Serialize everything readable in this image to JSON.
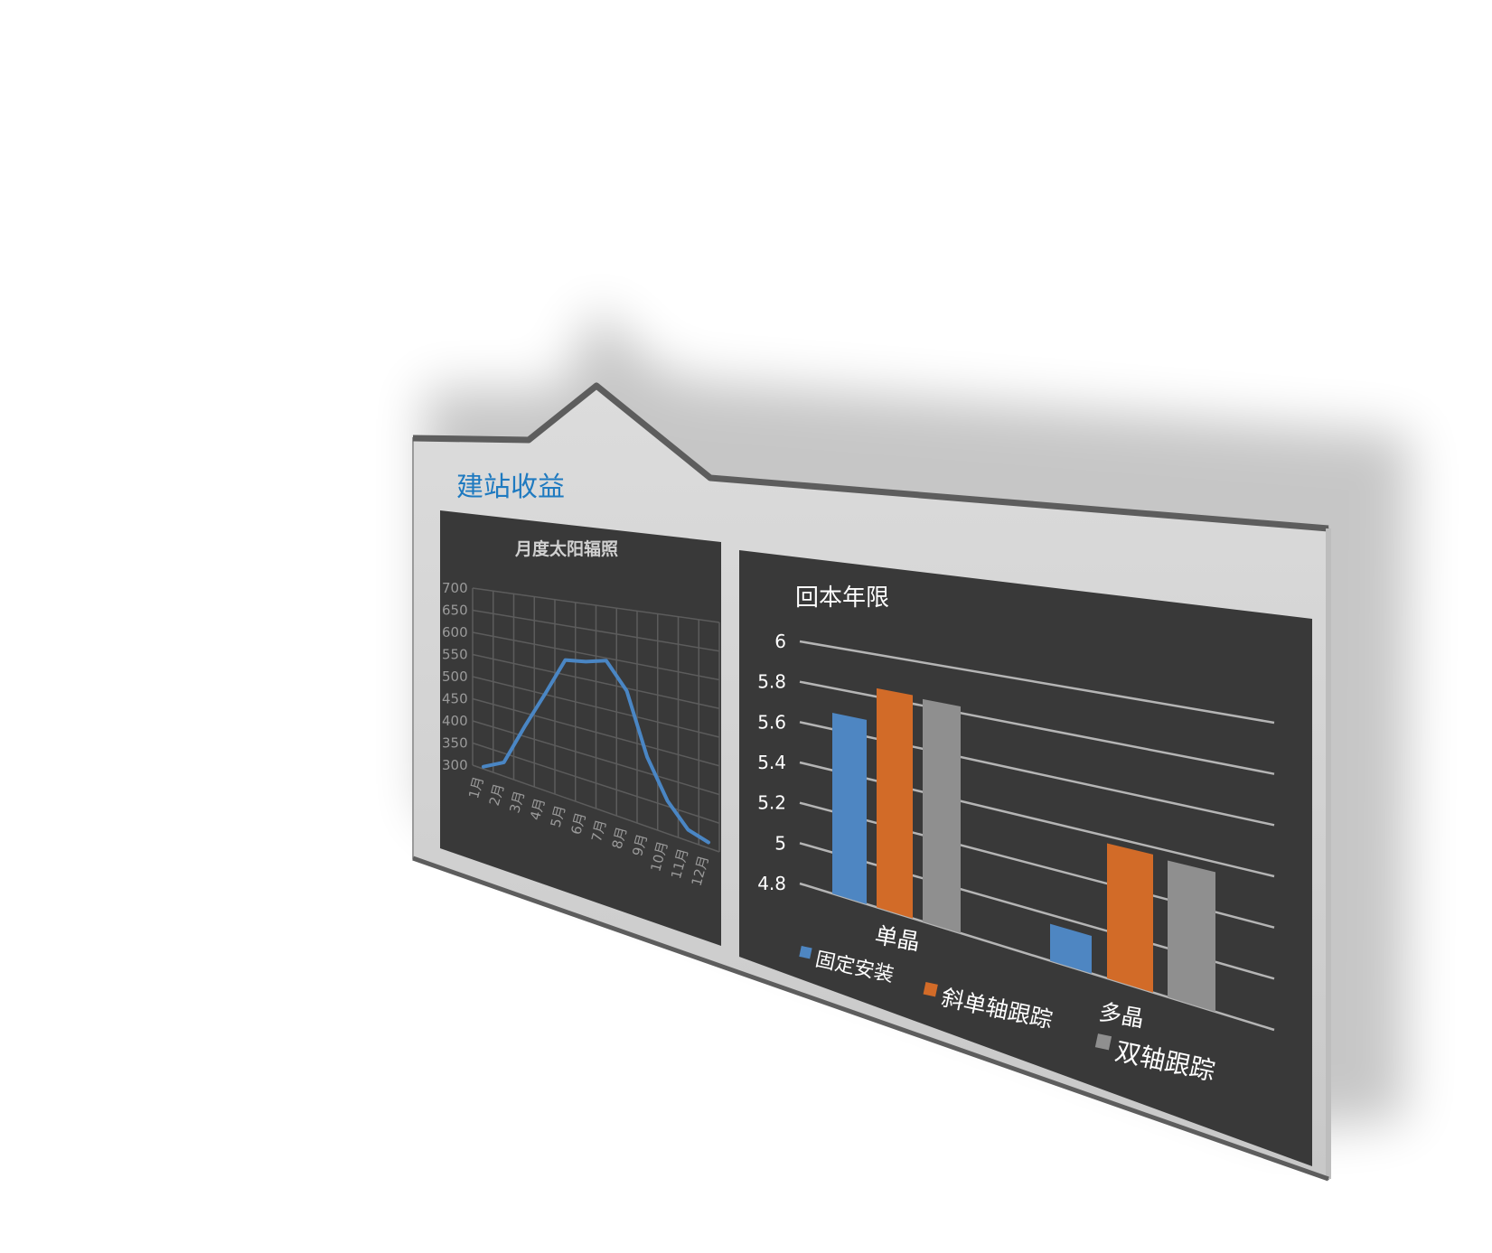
{
  "board": {
    "title": "建站收益",
    "accent_color": "#1f7ac0",
    "frame_color": "#cfcfcf",
    "panel_color": "#383838"
  },
  "chart_data": [
    {
      "type": "line",
      "title": "月度太阳辐照",
      "categories": [
        "1月",
        "2月",
        "3月",
        "4月",
        "5月",
        "6月",
        "7月",
        "8月",
        "9月",
        "10月",
        "11月",
        "12月"
      ],
      "series": [
        {
          "values": [
            305,
            330,
            420,
            500,
            580,
            585,
            595,
            545,
            430,
            360,
            320,
            310
          ],
          "color": "#4a86c4"
        }
      ],
      "ylim": [
        300,
        700
      ],
      "yticks": [
        "300",
        "350",
        "400",
        "450",
        "500",
        "550",
        "600",
        "650",
        "700"
      ],
      "grid": true,
      "legend": "none"
    },
    {
      "type": "bar",
      "title": "回本年限",
      "categories": [
        "单晶",
        "多晶"
      ],
      "series": [
        {
          "name": "固定安装",
          "values": [
            5.68,
            4.96
          ],
          "color": "#4e86c2"
        },
        {
          "name": "斜单轴跟踪",
          "values": [
            5.84,
            5.37
          ],
          "color": "#d26b28"
        },
        {
          "name": "双轴跟踪",
          "values": [
            5.83,
            5.36
          ],
          "color": "#8f8f8f"
        }
      ],
      "ylim": [
        4.8,
        6
      ],
      "yticks": [
        "4.8",
        "5",
        "5.2",
        "5.4",
        "5.6",
        "5.8",
        "6"
      ],
      "grid": true,
      "legend": "bottom"
    }
  ]
}
